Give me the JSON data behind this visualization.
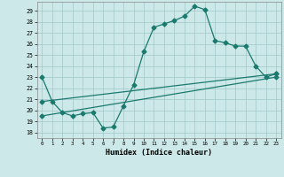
{
  "xlabel": "Humidex (Indice chaleur)",
  "xlim": [
    -0.5,
    23.5
  ],
  "ylim": [
    17.5,
    29.8
  ],
  "yticks": [
    18,
    19,
    20,
    21,
    22,
    23,
    24,
    25,
    26,
    27,
    28,
    29
  ],
  "xticks": [
    0,
    1,
    2,
    3,
    4,
    5,
    6,
    7,
    8,
    9,
    10,
    11,
    12,
    13,
    14,
    15,
    16,
    17,
    18,
    19,
    20,
    21,
    22,
    23
  ],
  "background_color": "#cde8e8",
  "grid_color": "#a0c8c8",
  "line_color": "#1a7a6e",
  "line1_x": [
    0,
    1,
    2,
    3,
    4,
    5,
    6,
    7,
    8,
    9,
    10,
    11,
    12,
    13,
    14,
    15,
    16,
    17,
    18,
    19,
    20,
    21,
    22,
    23
  ],
  "line1_y": [
    23.0,
    20.8,
    19.8,
    19.5,
    19.7,
    19.8,
    18.4,
    18.5,
    20.4,
    22.3,
    25.3,
    27.5,
    27.8,
    28.1,
    28.5,
    29.4,
    29.1,
    26.3,
    26.1,
    25.8,
    25.8,
    24.0,
    23.0,
    23.3
  ],
  "line2_x": [
    0,
    23
  ],
  "line2_y": [
    20.8,
    23.3
  ],
  "line3_x": [
    0,
    23
  ],
  "line3_y": [
    19.5,
    23.0
  ],
  "marker": "D",
  "markersize": 2.5,
  "linewidth": 0.9
}
